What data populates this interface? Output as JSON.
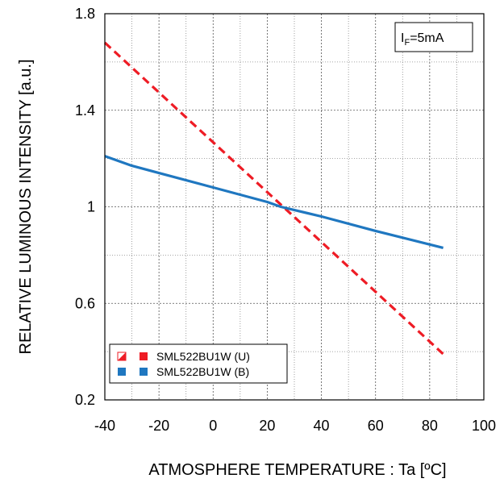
{
  "chart_data": {
    "type": "line",
    "xlabel": "ATMOSPHERE TEMPERATURE : Ta [ºC]",
    "ylabel": "RELATIVE LUMINOUS INTENSITY [a.u.]",
    "xlim": [
      -40,
      100
    ],
    "ylim": [
      0.2,
      1.8
    ],
    "x_ticks": [
      -40,
      -20,
      0,
      20,
      40,
      60,
      80,
      100
    ],
    "x_tick_labels": [
      "-40",
      "-20",
      "0",
      "20",
      "40",
      "60",
      "80",
      "100"
    ],
    "y_ticks": [
      0.2,
      0.6,
      1.0,
      1.4,
      1.8
    ],
    "y_tick_labels": [
      "0.2",
      "0.6",
      "1",
      "1.4",
      "1.8"
    ],
    "x_minor_step": 10,
    "y_minor_step": 0.2,
    "grid": true,
    "condition": {
      "main": "I",
      "sub": "F",
      "rest": "=5mA"
    },
    "legend_position": "bottom-left",
    "series": [
      {
        "name": "SML522BU1W (U)",
        "color": "#ee1c25",
        "style": "dashed",
        "x": [
          -40,
          85
        ],
        "y": [
          1.68,
          0.39
        ]
      },
      {
        "name": "SML522BU1W (B)",
        "color": "#1f77c0",
        "style": "solid",
        "x": [
          -40,
          -30,
          -20,
          0,
          20,
          25,
          40,
          60,
          85
        ],
        "y": [
          1.21,
          1.17,
          1.14,
          1.08,
          1.02,
          1.0,
          0.96,
          0.9,
          0.83
        ]
      }
    ]
  }
}
